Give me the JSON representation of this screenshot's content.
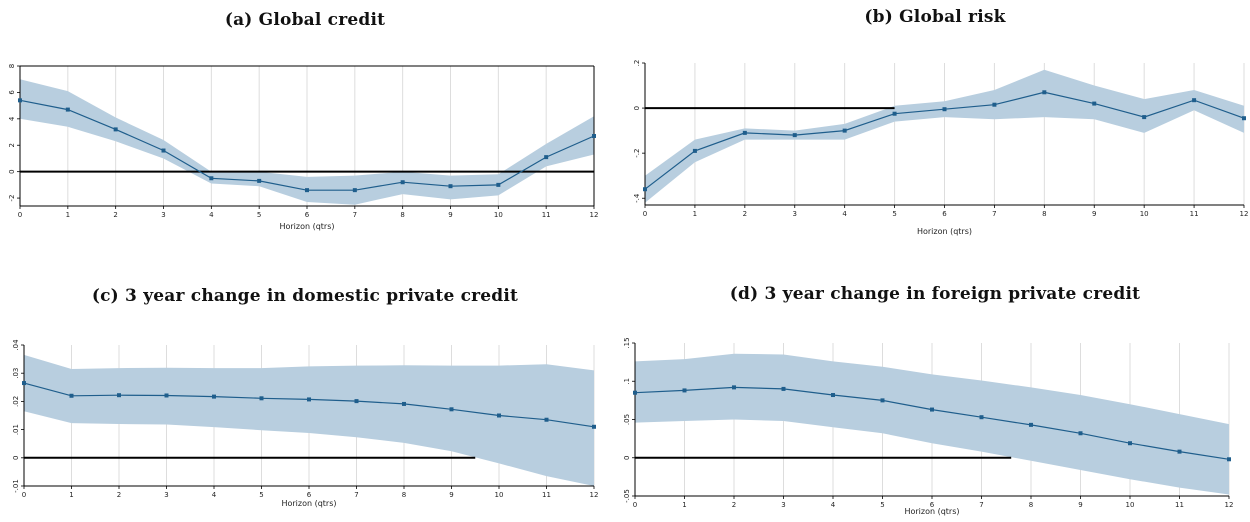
{
  "colors": {
    "band": "#b8cedf",
    "line": "#1f5e8c",
    "zero": "#000000",
    "grid": "#dddddd",
    "frame": "#000000"
  },
  "chart_data": [
    {
      "type": "line",
      "title": "(a) Global credit",
      "xlabel": "Horizon (qtrs)",
      "ylabel": "",
      "x": [
        0,
        1,
        2,
        3,
        4,
        5,
        6,
        7,
        8,
        9,
        10,
        11,
        12
      ],
      "xticks": [
        "0",
        "1",
        "2",
        "3",
        "4",
        "5",
        "6",
        "7",
        "8",
        "9",
        "10",
        "11",
        "12"
      ],
      "yticks": [
        -2,
        0,
        2,
        4,
        6,
        8
      ],
      "ytick_labels": [
        "-2",
        "0",
        "2",
        "4",
        "6",
        "8"
      ],
      "ylim": [
        -2.6,
        8
      ],
      "zero_line_x_end": 12,
      "grid": true,
      "series": [
        {
          "values": [
            5.4,
            4.7,
            3.2,
            1.6,
            -0.5,
            -0.7,
            -1.4,
            -1.4,
            -0.8,
            -1.1,
            -1.0,
            1.1,
            2.7
          ],
          "lower": [
            4.0,
            3.4,
            2.3,
            1.0,
            -0.9,
            -1.1,
            -2.3,
            -2.5,
            -1.7,
            -2.1,
            -1.8,
            0.4,
            1.3
          ],
          "upper": [
            7.0,
            6.1,
            4.1,
            2.4,
            0.0,
            0.0,
            -0.4,
            -0.3,
            0.0,
            -0.3,
            -0.2,
            2.1,
            4.2
          ]
        }
      ]
    },
    {
      "type": "line",
      "title": "(b) Global risk",
      "xlabel": "Horizon (qtrs)",
      "ylabel": "",
      "x": [
        0,
        1,
        2,
        3,
        4,
        5,
        6,
        7,
        8,
        9,
        10,
        11,
        12
      ],
      "xticks": [
        "0",
        "1",
        "2",
        "3",
        "4",
        "5",
        "6",
        "7",
        "8",
        "9",
        "10",
        "11",
        "12"
      ],
      "yticks": [
        -0.4,
        -0.2,
        0,
        0.2
      ],
      "ytick_labels": [
        "-.4",
        "-.2",
        "0",
        ".2"
      ],
      "ylim": [
        -0.43,
        0.2
      ],
      "zero_line_x_end": 5,
      "grid": true,
      "series": [
        {
          "values": [
            -0.36,
            -0.19,
            -0.11,
            -0.12,
            -0.1,
            -0.025,
            -0.005,
            0.015,
            0.07,
            0.02,
            -0.04,
            0.035,
            -0.045
          ],
          "lower": [
            -0.42,
            -0.24,
            -0.14,
            -0.14,
            -0.14,
            -0.06,
            -0.04,
            -0.05,
            -0.04,
            -0.05,
            -0.11,
            -0.01,
            -0.11
          ],
          "upper": [
            -0.3,
            -0.14,
            -0.09,
            -0.1,
            -0.07,
            0.01,
            0.03,
            0.08,
            0.17,
            0.1,
            0.04,
            0.08,
            0.01
          ]
        }
      ]
    },
    {
      "type": "line",
      "title": "(c) 3 year change in domestic private credit",
      "xlabel": "Horizon (qtrs)",
      "ylabel": "",
      "x": [
        0,
        1,
        2,
        3,
        4,
        5,
        6,
        7,
        8,
        9,
        10,
        11,
        12
      ],
      "xticks": [
        "0",
        "1",
        "2",
        "3",
        "4",
        "5",
        "6",
        "7",
        "8",
        "9",
        "10",
        "11",
        "12"
      ],
      "yticks": [
        -0.01,
        0,
        0.01,
        0.02,
        0.03,
        0.04
      ],
      "ytick_labels": [
        "-.01",
        "0",
        ".01",
        ".02",
        ".03",
        ".04"
      ],
      "ylim": [
        -0.01,
        0.04
      ],
      "zero_line_x_end": 9.5,
      "grid": true,
      "series": [
        {
          "values": [
            0.0265,
            0.022,
            0.0222,
            0.0221,
            0.0217,
            0.0211,
            0.0207,
            0.0201,
            0.0191,
            0.0172,
            0.015,
            0.0135,
            0.011
          ],
          "lower": [
            0.0165,
            0.0123,
            0.012,
            0.0118,
            0.0109,
            0.0098,
            0.0088,
            0.0073,
            0.0053,
            0.0023,
            -0.002,
            -0.0065,
            -0.01
          ],
          "upper": [
            0.0365,
            0.0315,
            0.0318,
            0.0319,
            0.0318,
            0.0318,
            0.0324,
            0.0327,
            0.0328,
            0.0327,
            0.0327,
            0.0332,
            0.031
          ]
        }
      ]
    },
    {
      "type": "line",
      "title": "(d) 3 year change in foreign private credit",
      "xlabel": "Horizon (qtrs)",
      "ylabel": "",
      "x": [
        0,
        1,
        2,
        3,
        4,
        5,
        6,
        7,
        8,
        9,
        10,
        11,
        12
      ],
      "xticks": [
        "0",
        "1",
        "2",
        "3",
        "4",
        "5",
        "6",
        "7",
        "8",
        "9",
        "10",
        "11",
        "12"
      ],
      "yticks": [
        -0.05,
        0,
        0.05,
        0.1,
        0.15
      ],
      "ytick_labels": [
        "-.05",
        "0",
        ".05",
        ".1",
        ".15"
      ],
      "ylim": [
        -0.05,
        0.15
      ],
      "zero_line_x_end": 7.6,
      "grid": true,
      "series": [
        {
          "values": [
            0.085,
            0.088,
            0.092,
            0.09,
            0.082,
            0.075,
            0.063,
            0.053,
            0.043,
            0.032,
            0.019,
            0.008,
            -0.002
          ],
          "lower": [
            0.046,
            0.048,
            0.05,
            0.048,
            0.04,
            0.032,
            0.019,
            0.008,
            -0.004,
            -0.016,
            -0.028,
            -0.039,
            -0.048
          ],
          "upper": [
            0.126,
            0.129,
            0.136,
            0.135,
            0.126,
            0.119,
            0.109,
            0.101,
            0.092,
            0.082,
            0.07,
            0.057,
            0.044
          ]
        }
      ]
    }
  ]
}
